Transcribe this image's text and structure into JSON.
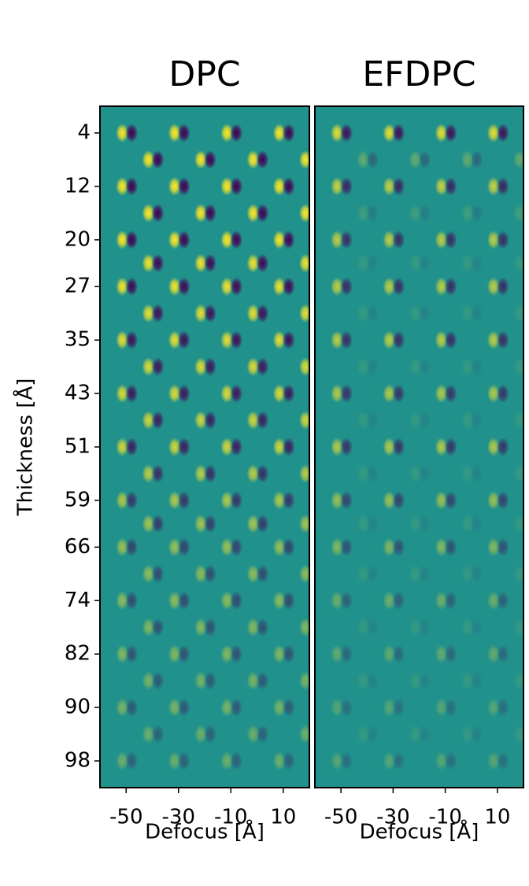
{
  "chart_data": [
    {
      "type": "heatmap",
      "title": "DPC",
      "xlabel": "Defocus [Å]",
      "ylabel": "Thickness [Å]",
      "xlim": [
        -60,
        20
      ],
      "xticks": [
        -50,
        -30,
        -10,
        10
      ],
      "ylim": [
        0,
        102
      ],
      "invert_y": true,
      "yticks": [
        4,
        12,
        20,
        27,
        35,
        43,
        51,
        59,
        66,
        74,
        82,
        90,
        98
      ],
      "colormap": [
        "#440154",
        "#21918c",
        "#fde725"
      ],
      "x_sets": [
        [
          -50,
          -30,
          -10,
          10
        ],
        [
          -40,
          -20,
          0,
          20
        ]
      ],
      "rows": [
        4,
        8,
        12,
        16,
        20,
        23.5,
        27,
        31,
        35,
        39,
        43,
        47,
        51,
        55,
        59,
        62.5,
        66,
        70,
        74,
        78,
        82,
        86,
        90,
        94,
        98
      ],
      "values": [
        1,
        1,
        1,
        1,
        1,
        0.95,
        0.95,
        0.9,
        0.9,
        0.85,
        0.85,
        0.8,
        0.8,
        0.7,
        0.65,
        0.6,
        0.55,
        0.5,
        0.5,
        0.45,
        0.45,
        0.4,
        0.4,
        0.35,
        0.35
      ]
    },
    {
      "type": "heatmap",
      "title": "EFDPC",
      "xlabel": "Defocus [Å]",
      "xlim": [
        -60,
        20
      ],
      "xticks": [
        -50,
        -30,
        -10,
        10
      ],
      "ylim": [
        0,
        102
      ],
      "invert_y": true,
      "colormap": [
        "#440154",
        "#21918c",
        "#fde725"
      ],
      "x_sets": [
        [
          -50,
          -30,
          -10,
          10
        ],
        [
          -40,
          -20,
          0,
          20
        ]
      ],
      "rows": [
        4,
        8,
        12,
        16,
        20,
        23.5,
        27,
        31,
        35,
        39,
        43,
        47,
        51,
        55,
        59,
        62.5,
        66,
        70,
        74,
        78,
        82,
        86,
        90,
        94,
        98
      ],
      "values": [
        0.9,
        0.3,
        0.75,
        0.15,
        0.7,
        0.1,
        0.7,
        0.1,
        0.7,
        0.1,
        0.65,
        0.1,
        0.65,
        0.1,
        0.55,
        0.1,
        0.45,
        0.1,
        0.35,
        0.1,
        0.3,
        0.1,
        0.25,
        0.1,
        0.25
      ]
    }
  ]
}
